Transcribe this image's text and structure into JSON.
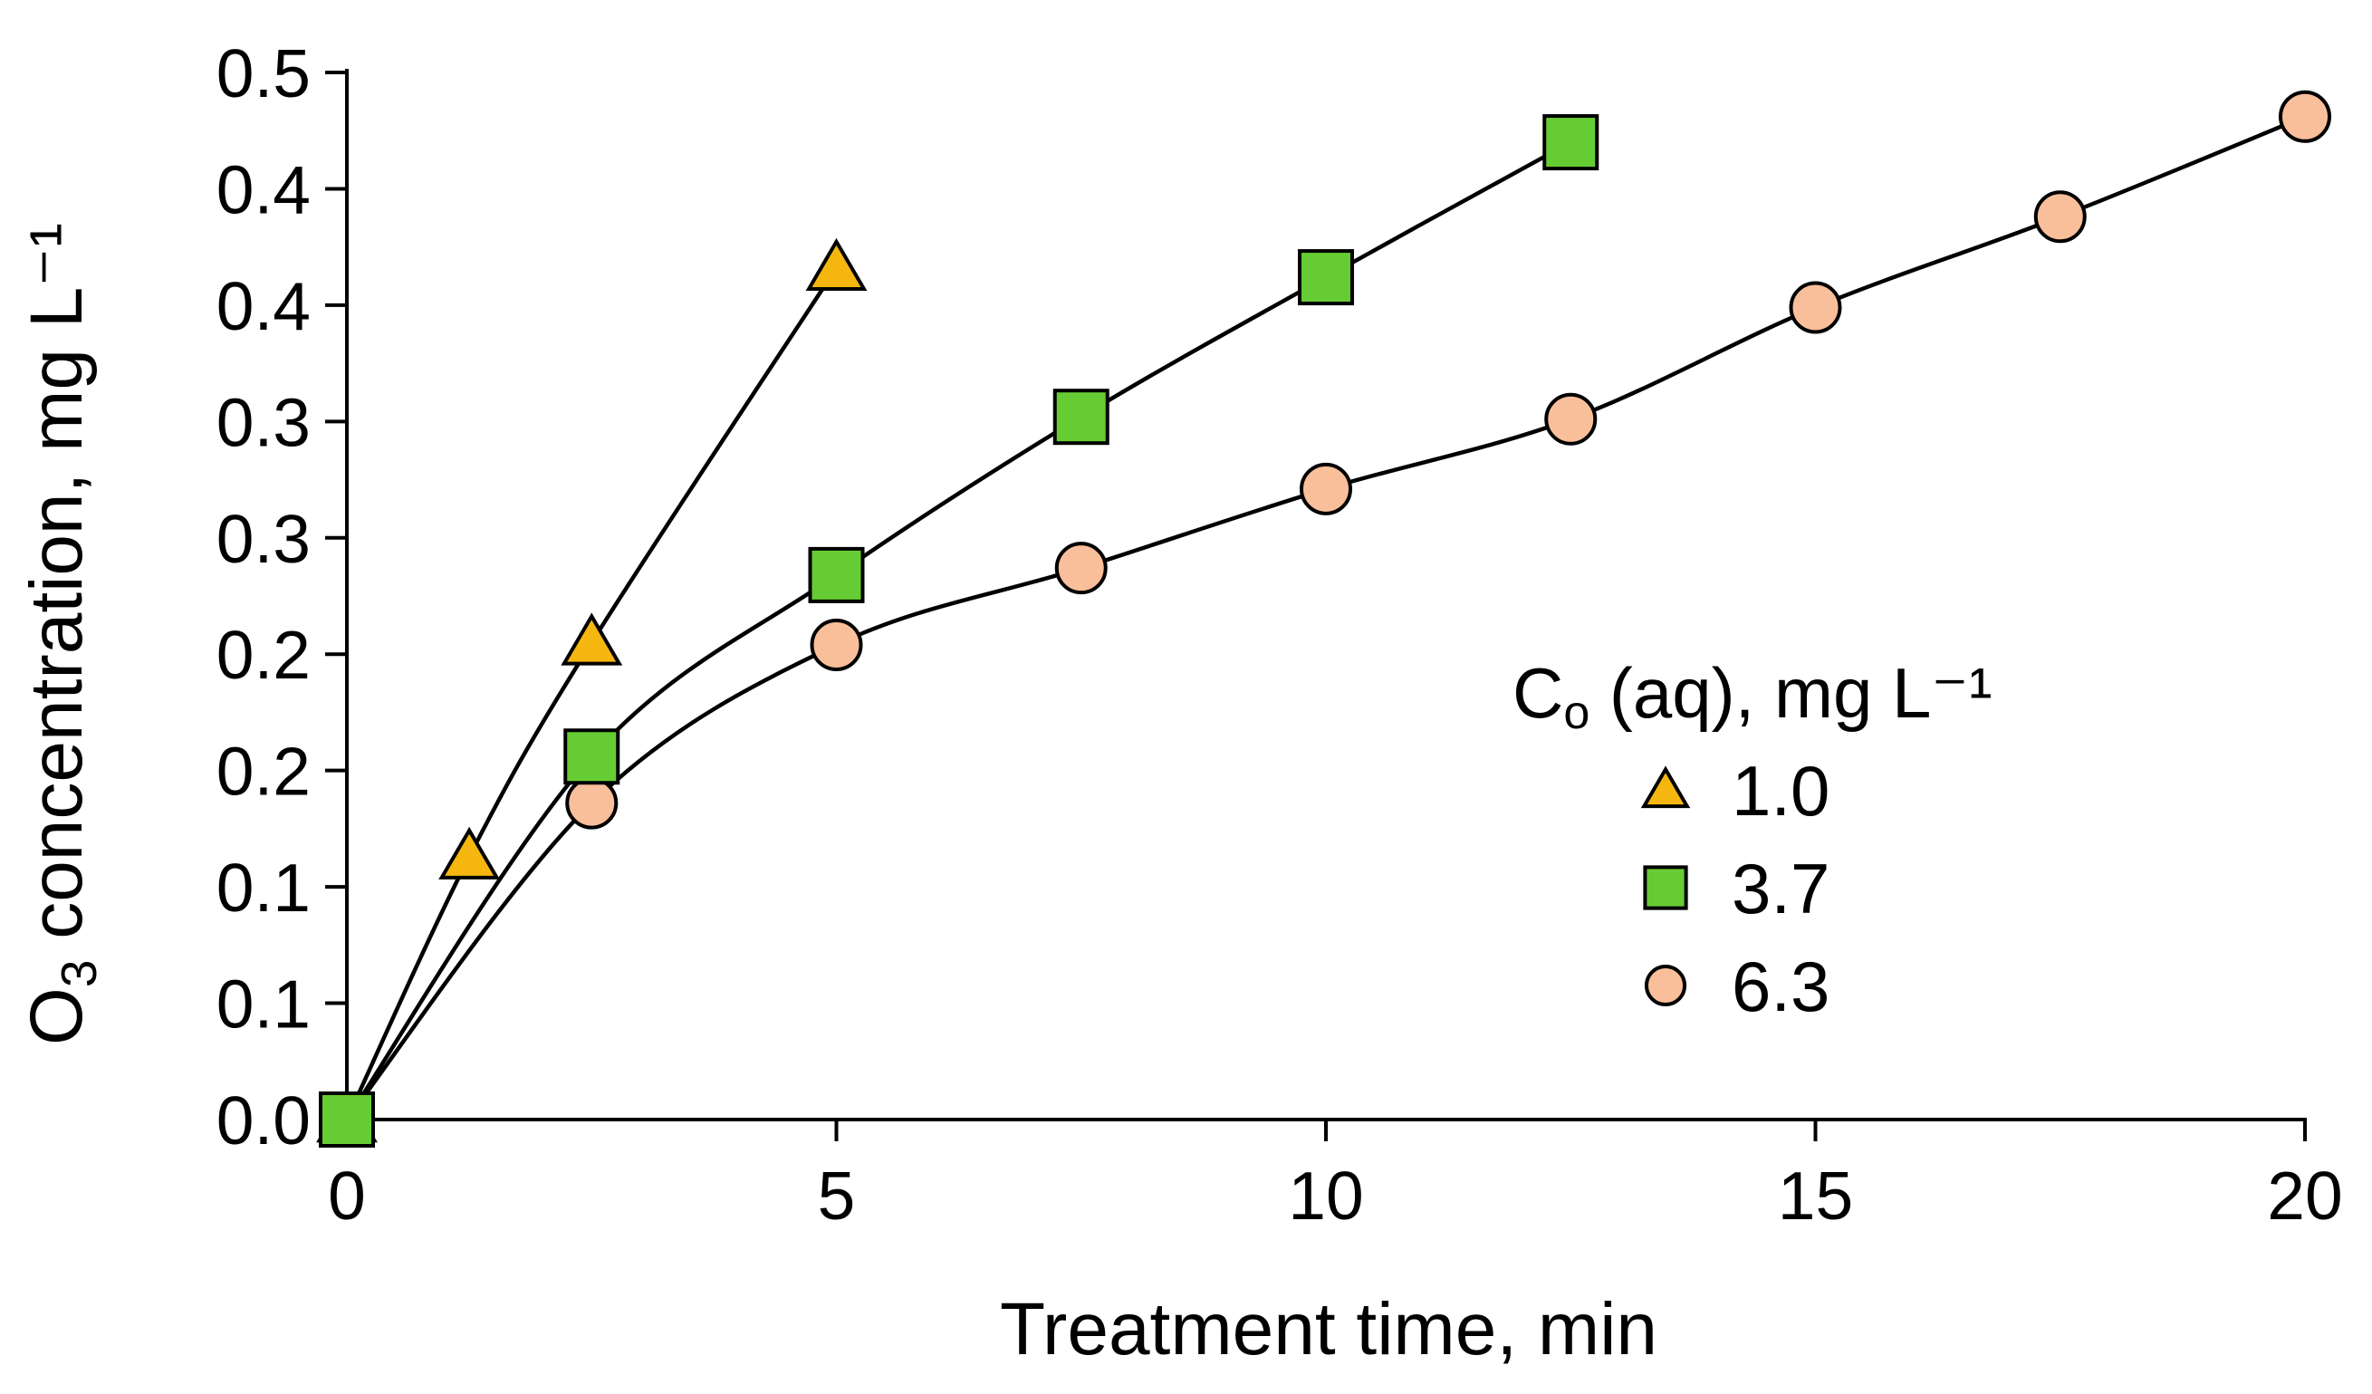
{
  "chart_data": {
    "type": "line",
    "xlabel": "Treatment time, min",
    "ylabel_prefix": "O",
    "ylabel_subscript": "3",
    "ylabel_suffix": " concentration, mg L⁻¹",
    "x_ticks": [
      "0",
      "5",
      "10",
      "15",
      "20"
    ],
    "x_tick_values": [
      0,
      5,
      10,
      15,
      20
    ],
    "xlim": [
      0,
      20
    ],
    "y_ticks": [
      "0.0",
      "0.1",
      "0.1",
      "0.2",
      "0.2",
      "0.3",
      "0.3",
      "0.4",
      "0.4",
      "0.5"
    ],
    "y_tick_values": [
      0,
      0.05,
      0.1,
      0.15,
      0.2,
      0.25,
      0.3,
      0.35,
      0.4,
      0.45
    ],
    "ylim": [
      0,
      0.45
    ],
    "grid": false,
    "legend_position": "right-middle",
    "legend": {
      "title_main": "C",
      "title_subscript": "o",
      "title_rest": " (aq), mg L⁻¹"
    },
    "series": [
      {
        "name": "1.0",
        "marker": "triangle",
        "color": "#F5B70F",
        "x": [
          0,
          1.25,
          2.5,
          5
        ],
        "y": [
          0,
          0.113,
          0.205,
          0.366
        ]
      },
      {
        "name": "3.7",
        "marker": "square",
        "color": "#66CC33",
        "x": [
          0,
          2.5,
          5,
          7.5,
          10,
          12.5
        ],
        "y": [
          0,
          0.156,
          0.234,
          0.302,
          0.362,
          0.42
        ]
      },
      {
        "name": "6.3",
        "marker": "circle",
        "color": "#F9BF9A",
        "x": [
          0,
          2.5,
          5,
          7.5,
          10,
          12.5,
          15,
          17.5,
          20
        ],
        "y": [
          0,
          0.136,
          0.204,
          0.237,
          0.271,
          0.301,
          0.349,
          0.388,
          0.431
        ]
      }
    ]
  }
}
